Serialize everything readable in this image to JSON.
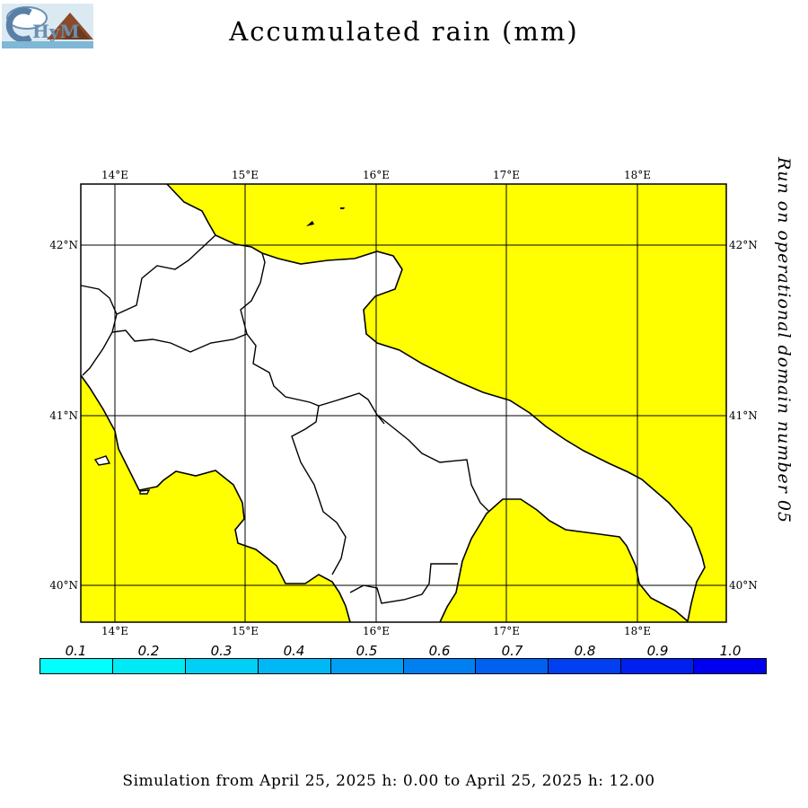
{
  "title": "Accumulated rain (mm)",
  "side_note": "Run on operational domain number 05",
  "footer": "Simulation from April 25, 2025 h: 0.00 to April 25, 2025 h: 12.00",
  "logo": {
    "text": "CHyM",
    "colors": {
      "sky": "#dbeaf2",
      "mountain": "#8b4a2a",
      "water": "#7fb7d6"
    }
  },
  "map": {
    "colors": {
      "sea": "#ffff00",
      "land": "#ffffff",
      "border": "#000000"
    },
    "lon_labels": [
      "14°E",
      "15°E",
      "16°E",
      "17°E",
      "18°E"
    ],
    "lat_labels": [
      "42°N",
      "41°N",
      "40°N"
    ],
    "lon_range": [
      13.75,
      18.7
    ],
    "lat_range": [
      39.78,
      42.35
    ]
  },
  "legend": {
    "values": [
      "0.1",
      "0.2",
      "0.3",
      "0.4",
      "0.5",
      "0.6",
      "0.7",
      "0.8",
      "0.9",
      "1.0"
    ],
    "colors": [
      "#00ffff",
      "#00eaf5",
      "#00d0f5",
      "#00b8f5",
      "#00a0f5",
      "#0080f0",
      "#0060f0",
      "#0040f0",
      "#0020f0",
      "#0000f0"
    ]
  }
}
